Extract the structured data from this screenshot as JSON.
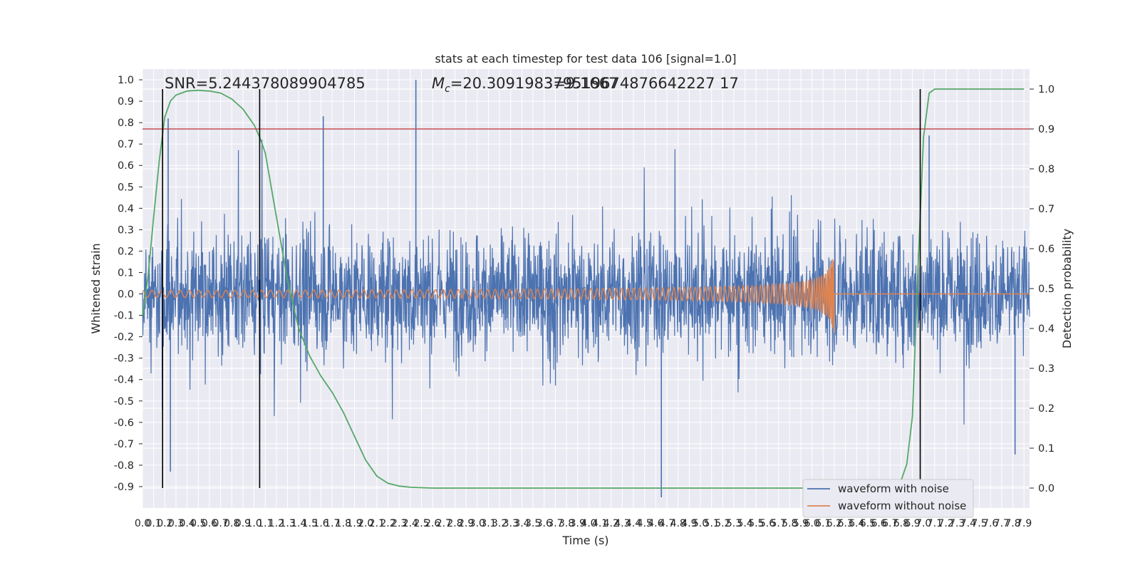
{
  "chart_data": {
    "type": "line",
    "title": "stats at each timestep for test data 106 [signal=1.0]",
    "xlabel": "Time (s)",
    "ylabel": "Whitened strain",
    "ylabel_right": "Detection probability",
    "xlim": [
      0.0,
      7.95
    ],
    "ylim": [
      -1.0,
      1.05
    ],
    "ylim_right": [
      -0.05,
      1.05
    ],
    "x_ticks": [
      "0.0",
      "0.1",
      "0.2",
      "0.3",
      "0.4",
      "0.5",
      "0.6",
      "0.7",
      "0.8",
      "0.9",
      "1.0",
      "1.1",
      "1.2",
      "1.3",
      "1.4",
      "1.5",
      "1.6",
      "1.7",
      "1.8",
      "1.9",
      "2.0",
      "2.1",
      "2.2",
      "2.3",
      "2.4",
      "2.5",
      "2.6",
      "2.7",
      "2.8",
      "2.9",
      "3.0",
      "3.1",
      "3.2",
      "3.3",
      "3.4",
      "3.5",
      "3.6",
      "3.7",
      "3.8",
      "3.9",
      "4.0",
      "4.1",
      "4.2",
      "4.3",
      "4.4",
      "4.5",
      "4.6",
      "4.7",
      "4.8",
      "4.9",
      "5.0",
      "5.1",
      "5.2",
      "5.3",
      "5.4",
      "5.5",
      "5.6",
      "5.7",
      "5.8",
      "5.9",
      "6.0",
      "6.1",
      "6.2",
      "6.3",
      "6.4",
      "6.5",
      "6.6",
      "6.7",
      "6.8",
      "6.9",
      "7.0",
      "7.1",
      "7.2",
      "7.3",
      "7.4",
      "7.5",
      "7.6",
      "7.7",
      "7.8",
      "7.9"
    ],
    "y_ticks": [
      "1.0",
      "0.9",
      "0.8",
      "0.7",
      "0.6",
      "0.5",
      "0.4",
      "0.3",
      "0.2",
      "0.1",
      "0.0",
      "-0.1",
      "-0.2",
      "-0.3",
      "-0.4",
      "-0.5",
      "-0.6",
      "-0.7",
      "-0.8",
      "-0.9"
    ],
    "y_ticks_right": [
      "1.0",
      "0.9",
      "0.8",
      "0.7",
      "0.6",
      "0.5",
      "0.4",
      "0.3",
      "0.2",
      "0.1",
      "0.0"
    ],
    "annotations": {
      "snr": "SNR=5.244378089904785",
      "mc_prefix": "M",
      "mc_sub": "c",
      "mc_value": "=20.309198379519674876642227 17",
      "mc_overlap": "3=9.1667"
    },
    "legend": {
      "placement": "lower-right",
      "entries": [
        "waveform with noise",
        "waveform without noise"
      ]
    },
    "threshold_right": 0.9,
    "vertical_lines_x": [
      0.18,
      1.05,
      6.97
    ],
    "series": [
      {
        "name": "waveform with noise",
        "color": "#4c72b0",
        "description_amplitude": "noise band roughly -0.6 to 0.6, spikes near 1.0 at x=2.45 and -0.95 at x=4.65"
      },
      {
        "name": "waveform without noise",
        "color": "#dd8452",
        "chirp": {
          "start": 0.0,
          "merger": 6.2,
          "peak_amplitude": 0.22,
          "min_amplitude": -0.25
        }
      },
      {
        "name": "detection probability",
        "color": "#55a868",
        "x": [
          0.0,
          0.05,
          0.1,
          0.15,
          0.2,
          0.25,
          0.3,
          0.4,
          0.5,
          0.6,
          0.7,
          0.8,
          0.9,
          0.95,
          1.0,
          1.05,
          1.1,
          1.2,
          1.3,
          1.4,
          1.5,
          1.6,
          1.7,
          1.8,
          1.9,
          2.0,
          2.1,
          2.2,
          2.3,
          2.4,
          2.6,
          3.0,
          4.0,
          5.0,
          6.0,
          6.7,
          6.8,
          6.85,
          6.9,
          6.95,
          7.0,
          7.05,
          7.1,
          7.3,
          7.9
        ],
        "y": [
          0.43,
          0.53,
          0.68,
          0.82,
          0.93,
          0.97,
          0.985,
          0.995,
          0.997,
          0.995,
          0.99,
          0.975,
          0.95,
          0.93,
          0.91,
          0.88,
          0.84,
          0.68,
          0.52,
          0.4,
          0.33,
          0.28,
          0.24,
          0.19,
          0.13,
          0.07,
          0.03,
          0.012,
          0.005,
          0.002,
          0.0,
          0.0,
          0.0,
          0.0,
          0.0,
          0.0,
          0.02,
          0.06,
          0.18,
          0.55,
          0.88,
          0.99,
          1.0,
          1.0,
          1.0
        ]
      }
    ],
    "grid": true,
    "colors": {
      "background": "#eaeaf2",
      "grid": "#ffffff",
      "threshold": "#c44e52",
      "vline": "#000000"
    }
  }
}
